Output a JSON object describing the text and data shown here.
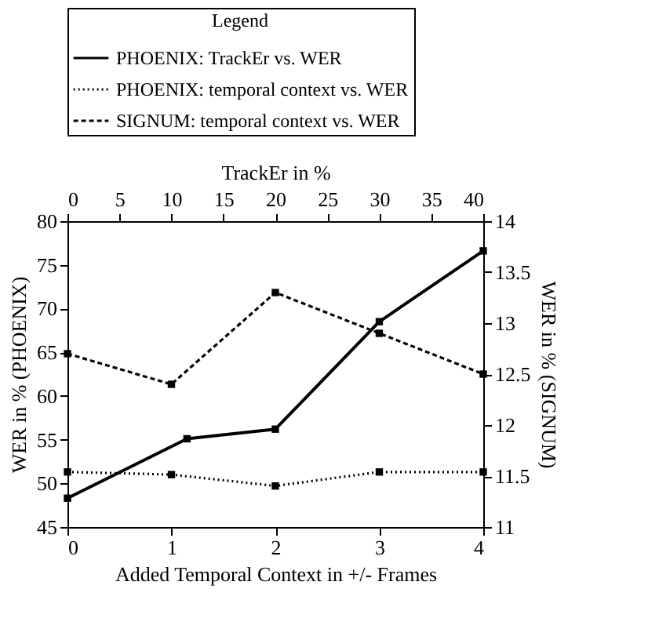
{
  "chart_data": {
    "type": "line",
    "legend_title": "Legend",
    "legend": "top",
    "marker": "square",
    "grid": false,
    "xlabel": "Added Temporal Context in +/- Frames",
    "x2label": "TrackEr in %",
    "ylabel": "WER in % (PHOENIX)",
    "y2label": "WER in % (SIGNUM)",
    "x": [
      0,
      1,
      2,
      3,
      4
    ],
    "xlim": [
      0,
      4
    ],
    "xticks": [
      0,
      1,
      2,
      3,
      4
    ],
    "x2lim": [
      0,
      40
    ],
    "x2ticks": [
      0,
      5,
      10,
      15,
      20,
      25,
      30,
      35,
      40
    ],
    "ylim": [
      45,
      80
    ],
    "yticks": [
      45,
      50,
      55,
      60,
      65,
      70,
      75,
      80
    ],
    "y2lim": [
      11,
      14
    ],
    "y2ticks": [
      11,
      11.5,
      12,
      12.5,
      13,
      13.5,
      14
    ],
    "series": [
      {
        "name": "PHOENIX: TrackEr vs. WER",
        "color": "#000000",
        "line_style": "solid",
        "axis": "x2",
        "x": [
          0,
          11.5,
          20,
          30,
          40
        ],
        "values": [
          48.3,
          55.1,
          56.2,
          68.5,
          76.6
        ]
      },
      {
        "name": "PHOENIX: temporal context vs. WER",
        "color": "#000000",
        "line_style": "dotted",
        "values": [
          51.3,
          51.0,
          49.7,
          51.3,
          51.3
        ]
      },
      {
        "name": "SIGNUM:   temporal context vs. WER",
        "color": "#000000",
        "line_style": "dashed",
        "axis": "y2",
        "values": [
          12.7,
          12.4,
          13.3,
          12.9,
          12.5
        ]
      }
    ]
  }
}
